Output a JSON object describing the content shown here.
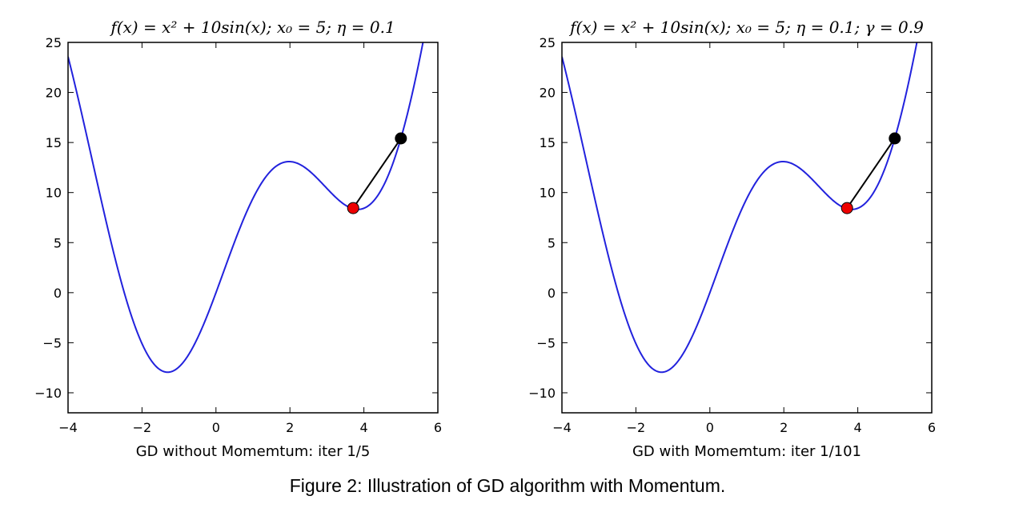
{
  "caption": "Figure 2: Illustration of GD algorithm with Momentum.",
  "chart_data": [
    {
      "type": "line",
      "title": "f(x) = x² + 10sin(x); x₀ = 5; η = 0.1",
      "xlabel": "GD without Momemtum: iter 1/5",
      "ylabel": "",
      "xlim": [
        -4,
        6
      ],
      "ylim": [
        -12,
        25
      ],
      "xticks": [
        -4,
        -2,
        0,
        2,
        4,
        6
      ],
      "xtick_labels": [
        "−4",
        "−2",
        "0",
        "2",
        "4",
        "6"
      ],
      "yticks": [
        -10,
        -5,
        0,
        5,
        10,
        15,
        20,
        25
      ],
      "ytick_labels": [
        "−10",
        "−5",
        "0",
        "5",
        "10",
        "15",
        "20",
        "25"
      ],
      "grid": false,
      "curve": {
        "function": "x^2 + 10*sin(x)",
        "x_range": [
          -4,
          6
        ],
        "color": "#2222dd"
      },
      "step_segment": {
        "points": [
          [
            5.0,
            15.41
          ],
          [
            3.71,
            8.45
          ]
        ],
        "color": "#000000"
      },
      "points": [
        {
          "x": 5.0,
          "y": 15.41,
          "color": "#000000"
        },
        {
          "x": 3.71,
          "y": 8.45,
          "color": "#ee0000"
        }
      ]
    },
    {
      "type": "line",
      "title": "f(x) = x² + 10sin(x); x₀ = 5; η = 0.1; γ = 0.9",
      "xlabel": "GD with Momemtum: iter 1/101",
      "ylabel": "",
      "xlim": [
        -4,
        6
      ],
      "ylim": [
        -12,
        25
      ],
      "xticks": [
        -4,
        -2,
        0,
        2,
        4,
        6
      ],
      "xtick_labels": [
        "−4",
        "−2",
        "0",
        "2",
        "4",
        "6"
      ],
      "yticks": [
        -10,
        -5,
        0,
        5,
        10,
        15,
        20,
        25
      ],
      "ytick_labels": [
        "−10",
        "−5",
        "0",
        "5",
        "10",
        "15",
        "20",
        "25"
      ],
      "grid": false,
      "curve": {
        "function": "x^2 + 10*sin(x)",
        "x_range": [
          -4,
          6
        ],
        "color": "#2222dd"
      },
      "step_segment": {
        "points": [
          [
            5.0,
            15.41
          ],
          [
            3.71,
            8.45
          ]
        ],
        "color": "#000000"
      },
      "points": [
        {
          "x": 5.0,
          "y": 15.41,
          "color": "#000000"
        },
        {
          "x": 3.71,
          "y": 8.45,
          "color": "#ee0000"
        }
      ]
    }
  ]
}
